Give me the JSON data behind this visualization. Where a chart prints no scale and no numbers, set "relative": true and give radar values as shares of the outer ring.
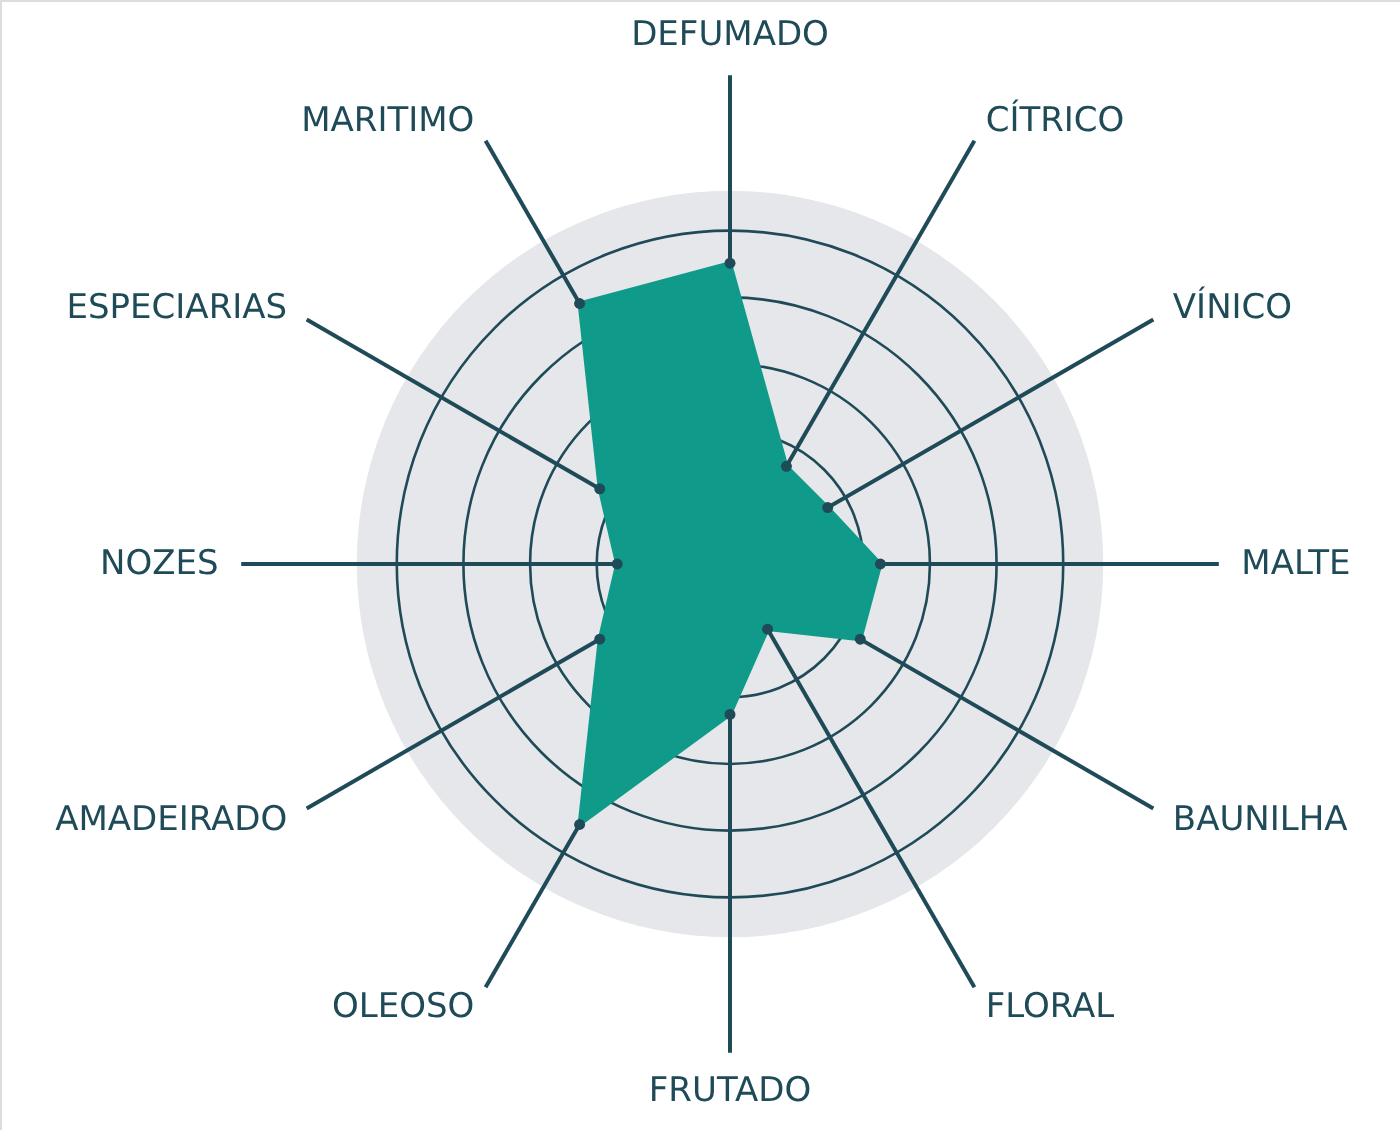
{
  "chart_data": {
    "type": "radar",
    "relative": true,
    "grid": true,
    "marker": "circle",
    "categories": [
      "DEFUMADO",
      "CÍTRICO",
      "VÍNICO",
      "MALTE",
      "BAUNILHA",
      "FLORAL",
      "FRUTADO",
      "OLEOSO",
      "AMADEIRADO",
      "NOZES",
      "ESPECIARIAS",
      "MARITIMO"
    ],
    "series": [
      {
        "color": "#0f9a8a",
        "values": [
          0.8,
          0.3,
          0.3,
          0.4,
          0.4,
          0.2,
          0.4,
          0.8,
          0.4,
          0.3,
          0.4,
          0.8
        ]
      }
    ]
  }
}
